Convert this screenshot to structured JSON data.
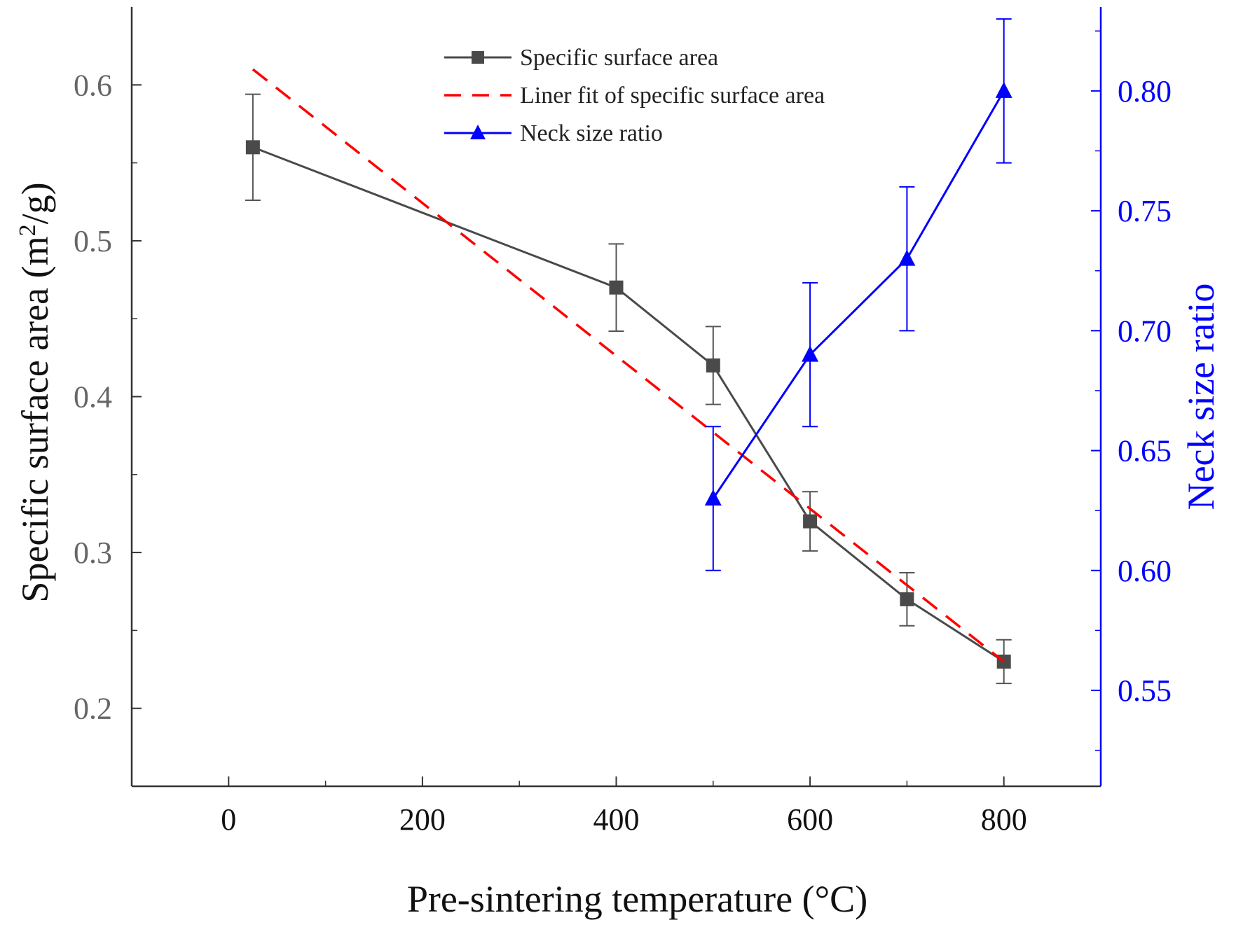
{
  "chart_data": {
    "type": "line",
    "title": "",
    "xlabel": "Pre-sintering temperature (°C)",
    "ylabel_main": "Specific surface area (m",
    "ylabel_sup": "2",
    "ylabel_tail": "/g)",
    "y2label": "Neck size ratio",
    "xlim": [
      -100,
      900
    ],
    "ylim": [
      0.15,
      0.65
    ],
    "y2lim": [
      0.51,
      0.835
    ],
    "x_ticks": [
      0,
      200,
      400,
      600,
      800
    ],
    "x_tick_labels": [
      "0",
      "200",
      "400",
      "600",
      "800"
    ],
    "y_ticks": [
      0.2,
      0.3,
      0.4,
      0.5,
      0.6
    ],
    "y_tick_labels": [
      "0.2",
      "0.3",
      "0.4",
      "0.5",
      "0.6"
    ],
    "y2_ticks": [
      0.55,
      0.6,
      0.65,
      0.7,
      0.75,
      0.8
    ],
    "y2_tick_labels": [
      "0.55",
      "0.60",
      "0.65",
      "0.70",
      "0.75",
      "0.80"
    ],
    "legend_position": "top-center",
    "series": [
      {
        "name": "Specific surface area",
        "axis": "left",
        "marker": "square",
        "line": "solid",
        "color": "#4a4a4a",
        "x": [
          25,
          400,
          500,
          600,
          700,
          800
        ],
        "y": [
          0.56,
          0.47,
          0.42,
          0.32,
          0.27,
          0.23
        ],
        "err": [
          0.034,
          0.028,
          0.025,
          0.019,
          0.017,
          0.014
        ]
      },
      {
        "name": "Liner fit of specific surface area",
        "axis": "left",
        "marker": "none",
        "line": "dashed",
        "color": "#ff0000",
        "x": [
          25,
          800
        ],
        "y": [
          0.61,
          0.23
        ]
      },
      {
        "name": "Neck size ratio",
        "axis": "right",
        "marker": "triangle",
        "line": "solid",
        "color": "#0000ff",
        "x": [
          500,
          600,
          700,
          800
        ],
        "y": [
          0.63,
          0.69,
          0.73,
          0.8
        ],
        "err": [
          0.03,
          0.03,
          0.03,
          0.03
        ]
      }
    ],
    "colors": {
      "left_axis": "#333333",
      "left_tick_text": "#666666",
      "right_axis": "#0000ff"
    }
  }
}
